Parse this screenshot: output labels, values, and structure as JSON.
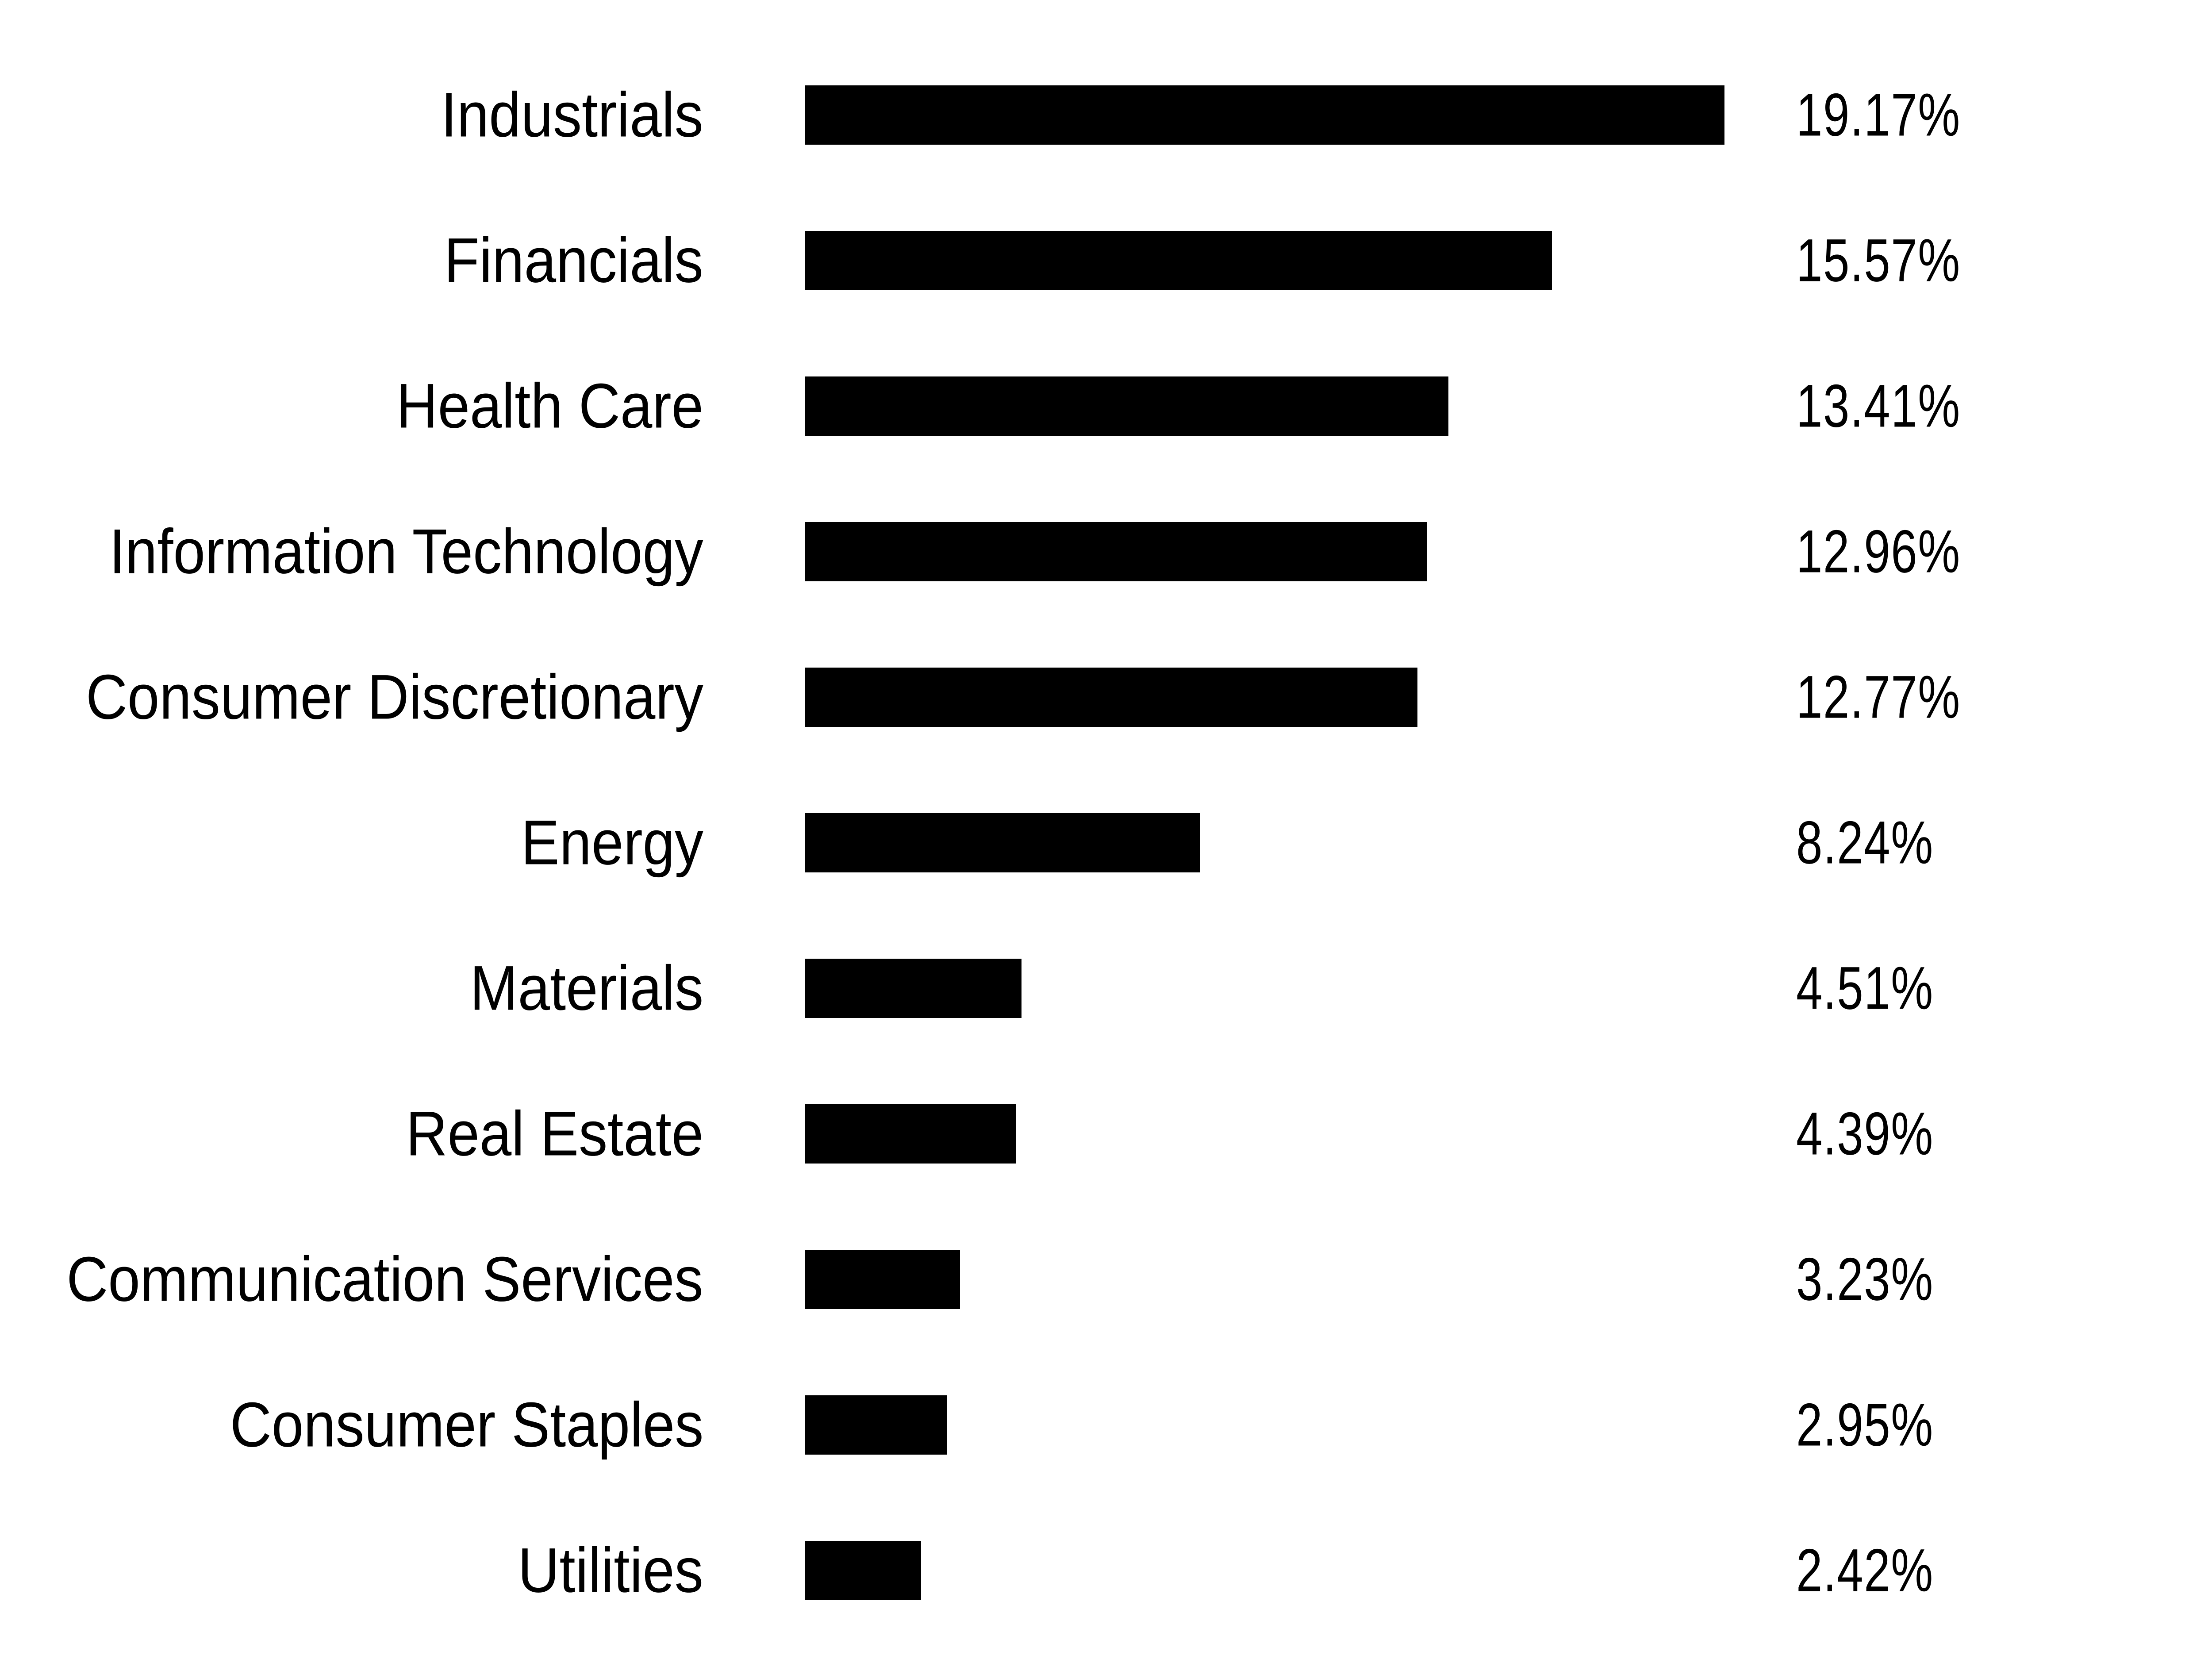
{
  "chart_data": {
    "type": "bar",
    "orientation": "horizontal",
    "title": "",
    "xlabel": "",
    "ylabel": "",
    "grid": false,
    "background": "#ffffff",
    "bar_color": "#000000",
    "text_color": "#000000",
    "xlim": [
      0,
      19.17
    ],
    "category_label_position": "left-right-aligned",
    "value_label_position": "right-column-left-aligned",
    "categories": [
      "Industrials",
      "Financials",
      "Health Care",
      "Information Technology",
      "Consumer Discretionary",
      "Energy",
      "Materials",
      "Real Estate",
      "Communication Services",
      "Consumer Staples",
      "Utilities"
    ],
    "values": [
      19.17,
      15.57,
      13.41,
      12.96,
      12.77,
      8.24,
      4.51,
      4.39,
      3.23,
      2.95,
      2.42
    ],
    "value_labels": [
      "19.17%",
      "15.57%",
      "13.41%",
      "12.96%",
      "12.77%",
      "8.24%",
      "4.51%",
      "4.39%",
      "3.23%",
      "2.95%",
      "2.42%"
    ]
  }
}
